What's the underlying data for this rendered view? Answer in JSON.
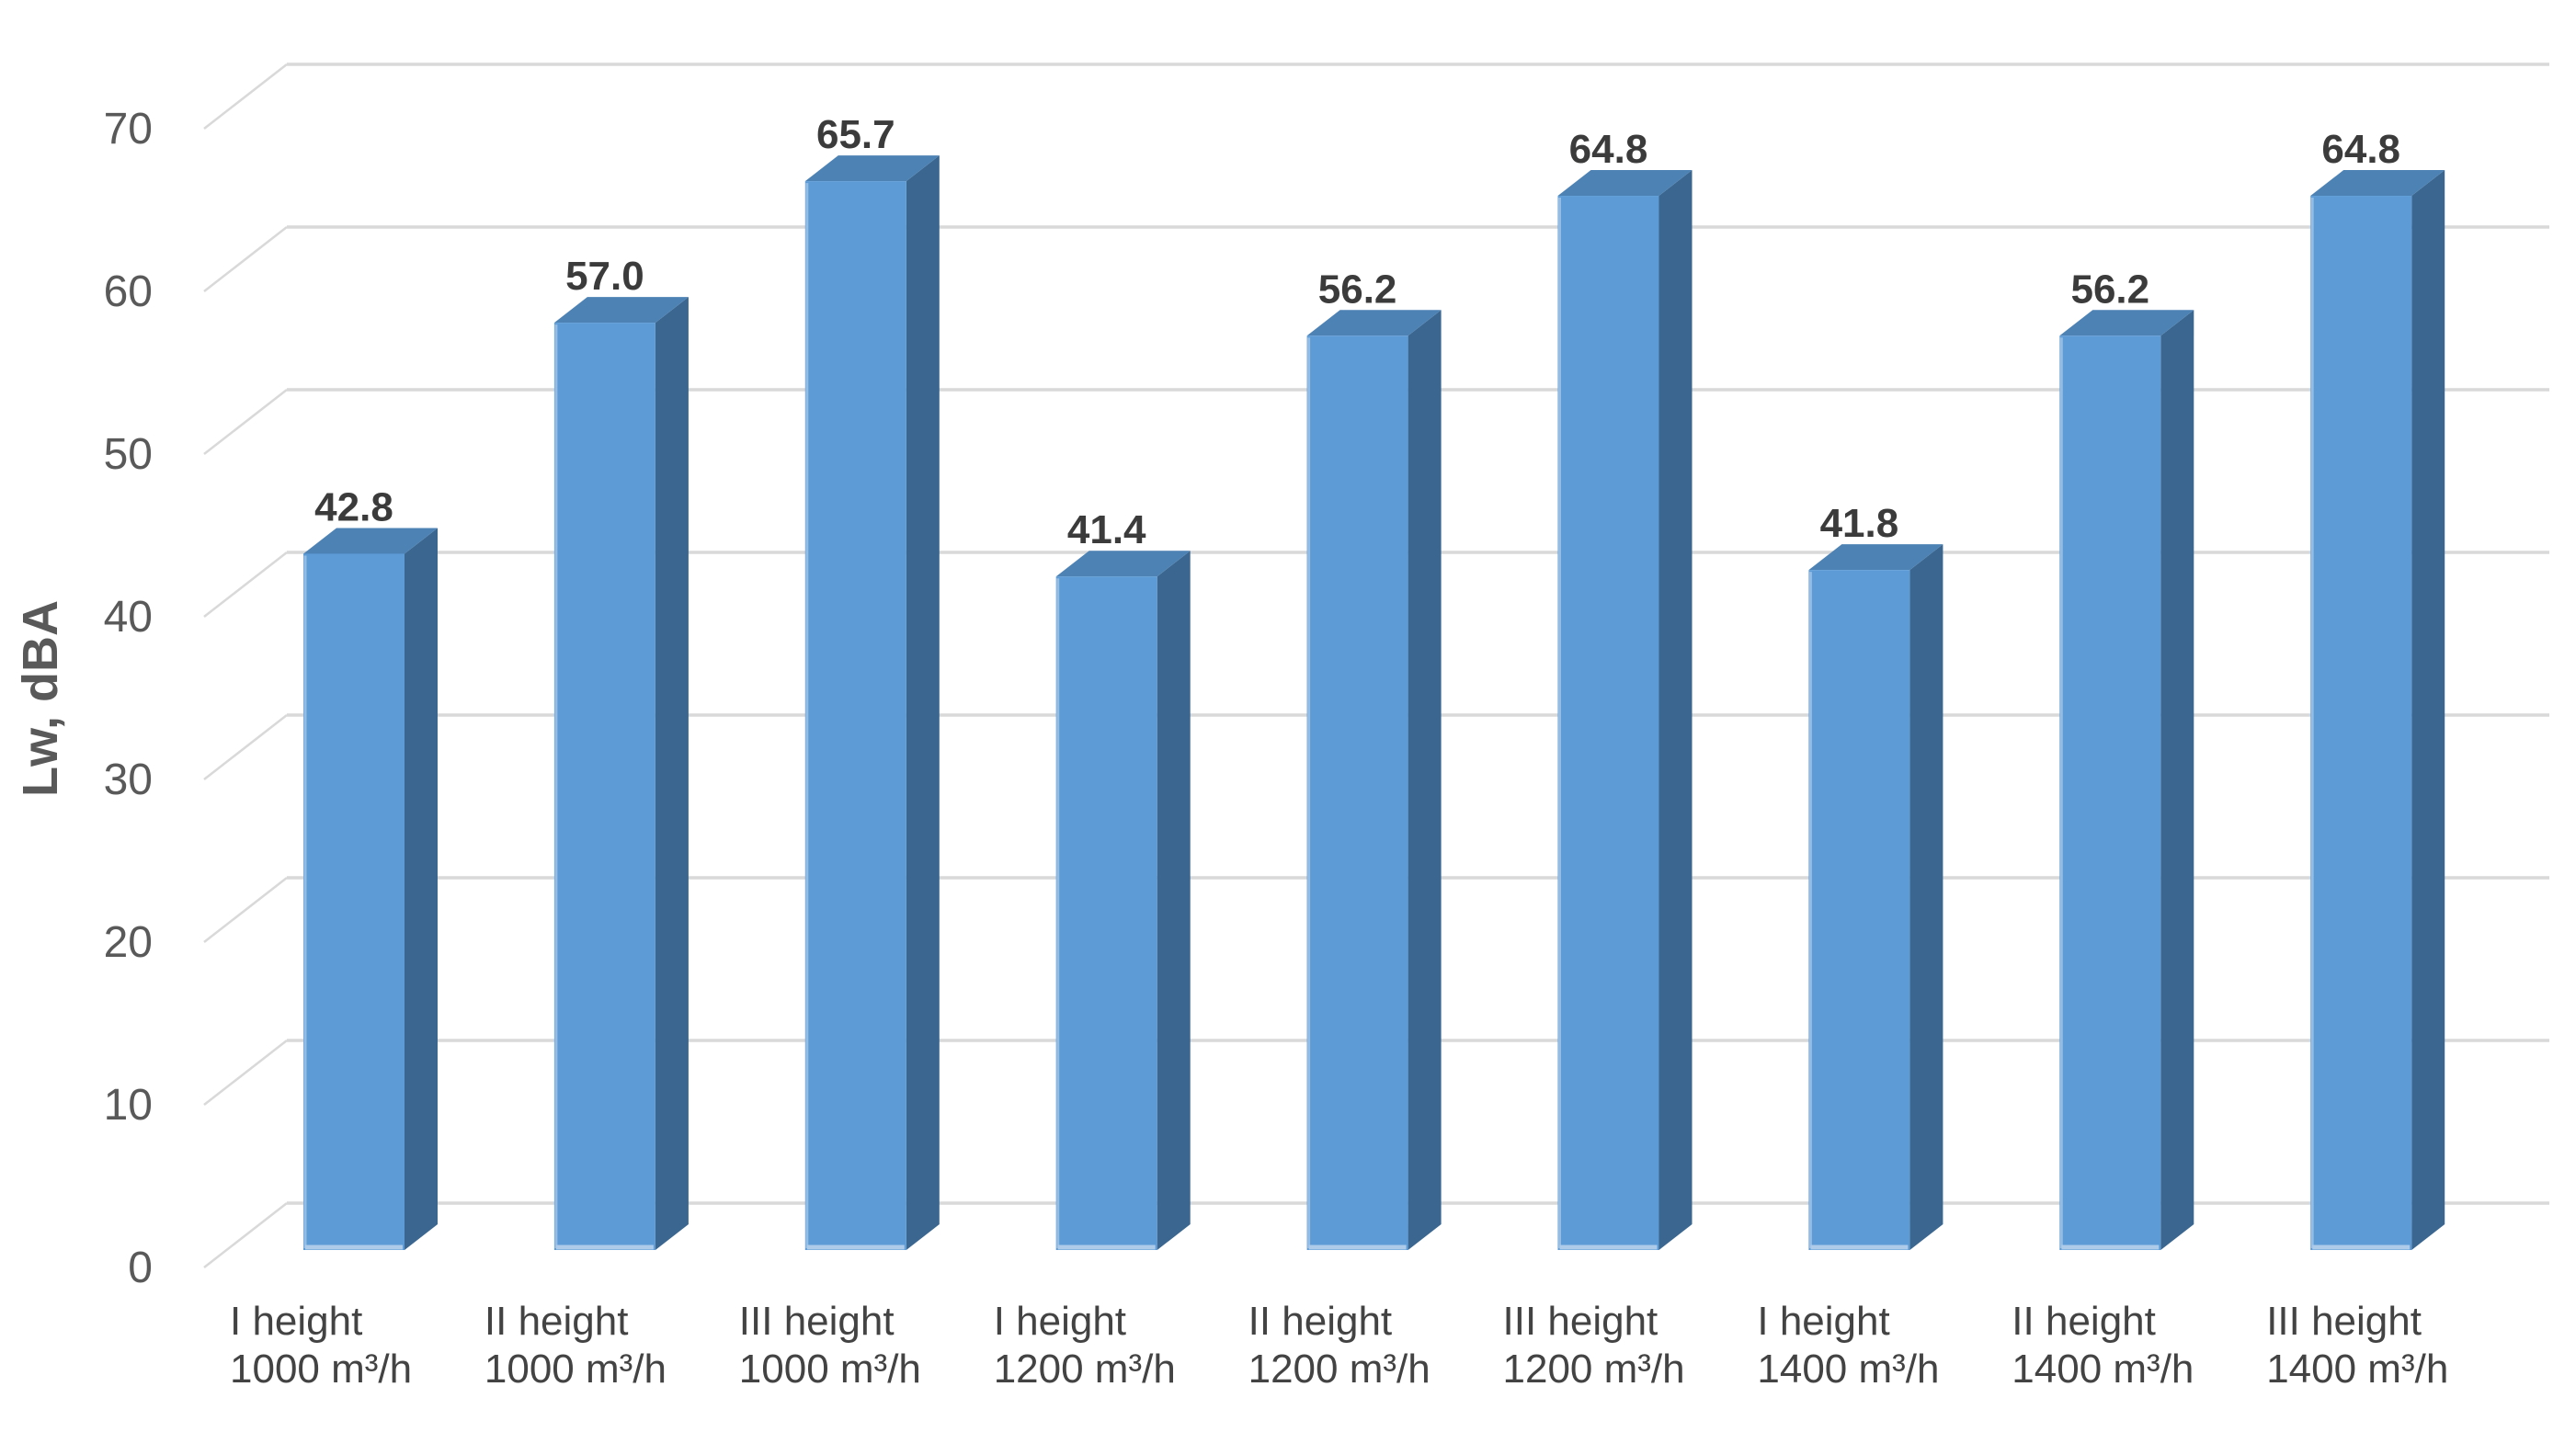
{
  "chart_data": {
    "type": "bar",
    "style": "3d-column",
    "title": "",
    "xlabel": "",
    "ylabel": "Lw, dBA",
    "ylim": [
      0,
      70
    ],
    "ytick_step": 10,
    "yticks": [
      "0",
      "10",
      "20",
      "30",
      "40",
      "50",
      "60",
      "70"
    ],
    "grid": true,
    "legend": false,
    "categories": [
      {
        "line1": "I height",
        "line2": "1000 m³/h"
      },
      {
        "line1": "II height",
        "line2": "1000 m³/h"
      },
      {
        "line1": "III height",
        "line2": "1000 m³/h"
      },
      {
        "line1": "I height",
        "line2": "1200 m³/h"
      },
      {
        "line1": "II height",
        "line2": "1200 m³/h"
      },
      {
        "line1": "III height",
        "line2": "1200 m³/h"
      },
      {
        "line1": "I height",
        "line2": "1400 m³/h"
      },
      {
        "line1": "II height",
        "line2": "1400 m³/h"
      },
      {
        "line1": "III height",
        "line2": "1400 m³/h"
      }
    ],
    "values": [
      42.8,
      57.0,
      65.7,
      41.4,
      56.2,
      64.8,
      41.8,
      56.2,
      64.8
    ],
    "value_labels": [
      "42.8",
      "57.0",
      "65.7",
      "41.4",
      "56.2",
      "64.8",
      "41.8",
      "56.2",
      "64.8"
    ],
    "colors": {
      "bar_front": "#5C9BD6",
      "bar_side": "#3A668F",
      "bar_top": "#4D82B5",
      "bar_front_edge_highlight": "#AECBE9",
      "gridline": "#D9D9D9",
      "axis_tick_text": "#595959",
      "axis_title_text": "#595959",
      "value_label_text": "#3B3B3B",
      "category_label_text": "#434343",
      "background": "#FFFFFF"
    }
  }
}
